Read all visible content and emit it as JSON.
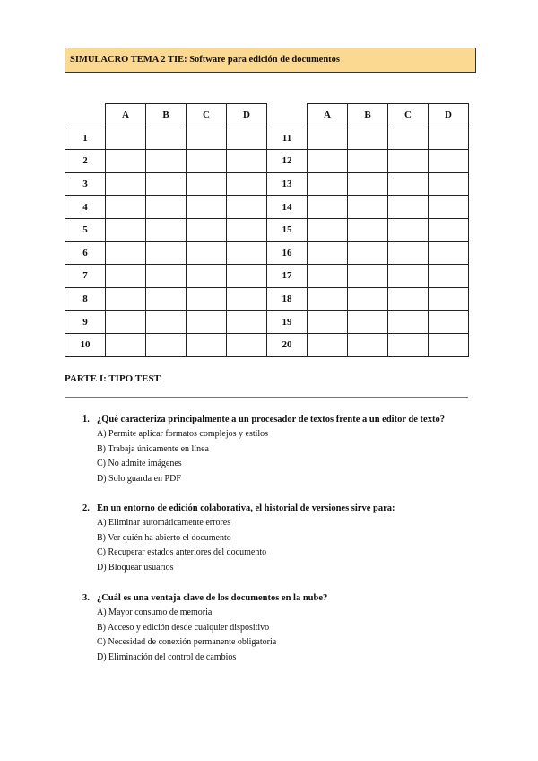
{
  "header": {
    "title": "SIMULACRO TEMA 2 TIE: Software para edición de documentos",
    "background": "#fbd990"
  },
  "answer_grid": {
    "columns": [
      "A",
      "B",
      "C",
      "D"
    ],
    "left_rows": [
      "1",
      "2",
      "3",
      "4",
      "5",
      "6",
      "7",
      "8",
      "9",
      "10"
    ],
    "right_rows": [
      "11",
      "12",
      "13",
      "14",
      "15",
      "16",
      "17",
      "18",
      "19",
      "20"
    ]
  },
  "section": {
    "title": "PARTE I: TIPO TEST"
  },
  "questions": [
    {
      "number": "1.",
      "text": "¿Qué caracteriza principalmente a un procesador de textos frente a un editor de texto?",
      "options": [
        "A) Permite aplicar formatos complejos y estilos",
        "B) Trabaja únicamente en línea",
        "C) No admite imágenes",
        "D) Solo guarda en PDF"
      ]
    },
    {
      "number": "2.",
      "text": "En un entorno de edición colaborativa, el historial de versiones sirve para:",
      "options": [
        "A) Eliminar automáticamente errores",
        "B) Ver quién ha abierto el documento",
        "C) Recuperar estados anteriores del documento",
        "D) Bloquear usuarios"
      ]
    },
    {
      "number": "3.",
      "text": "¿Cuál es una ventaja clave de los documentos en la nube?",
      "options": [
        "A) Mayor consumo de memoria",
        "B) Acceso y edición desde cualquier dispositivo",
        "C) Necesidad de conexión permanente obligatoria",
        "D) Eliminación del control de cambios"
      ]
    }
  ]
}
